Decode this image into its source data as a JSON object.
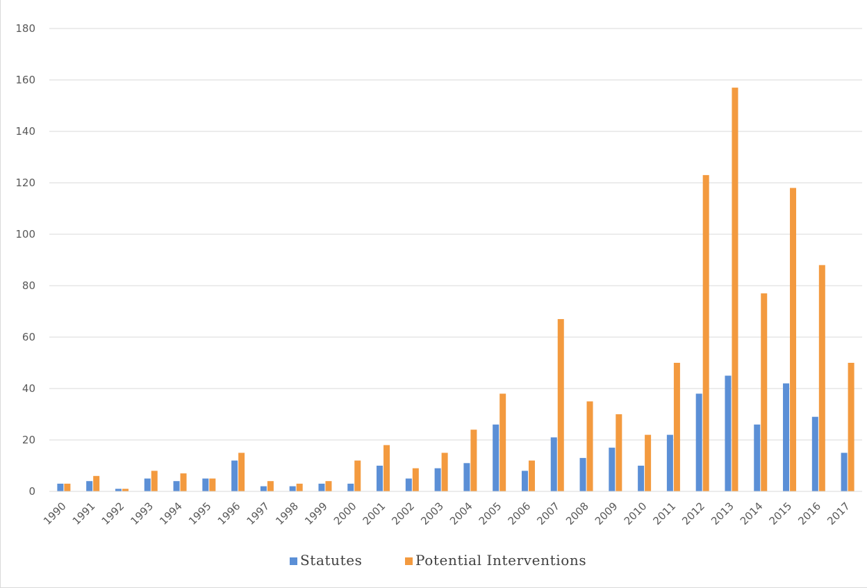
{
  "chart_data": {
    "type": "bar",
    "title": "",
    "xlabel": "",
    "ylabel": "",
    "ylim": [
      0,
      180
    ],
    "yticks": [
      0,
      20,
      40,
      60,
      80,
      100,
      120,
      140,
      160,
      180
    ],
    "grid": true,
    "legend_position": "bottom",
    "categories": [
      "1990",
      "1991",
      "1992",
      "1993",
      "1994",
      "1995",
      "1996",
      "1997",
      "1998",
      "1999",
      "2000",
      "2001",
      "2002",
      "2003",
      "2004",
      "2005",
      "2006",
      "2007",
      "2008",
      "2009",
      "2010",
      "2011",
      "2012",
      "2013",
      "2014",
      "2015",
      "2016",
      "2017"
    ],
    "series": [
      {
        "name": "Statutes",
        "color": "#5b8fd6",
        "values": [
          3,
          4,
          1,
          5,
          4,
          5,
          12,
          2,
          2,
          3,
          3,
          10,
          5,
          9,
          11,
          26,
          8,
          21,
          13,
          17,
          10,
          22,
          38,
          45,
          26,
          42,
          29,
          15
        ]
      },
      {
        "name": "Potential Interventions",
        "color": "#f39a3f",
        "values": [
          3,
          6,
          1,
          8,
          7,
          5,
          15,
          4,
          3,
          4,
          12,
          18,
          9,
          15,
          24,
          38,
          12,
          67,
          35,
          30,
          22,
          50,
          123,
          157,
          77,
          118,
          88,
          50
        ]
      }
    ]
  }
}
